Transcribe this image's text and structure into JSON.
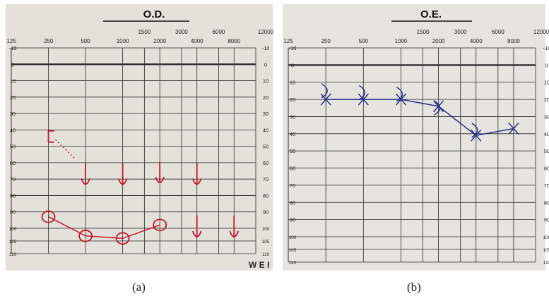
{
  "figure": {
    "caption_a": "(a)",
    "caption_b": "(b)"
  },
  "chart_data": [
    {
      "type": "audiogram",
      "panel_label": "(a)",
      "title": "O.D.",
      "top_freq_labels": [
        "125",
        "250",
        "500",
        "1000",
        "1500",
        "2000",
        "3000",
        "4000",
        "6000",
        "8000",
        "12000"
      ],
      "db_labels": [
        "-10",
        "0",
        "10",
        "20",
        "30",
        "40",
        "50",
        "60",
        "70",
        "80",
        "90",
        "100",
        "105",
        "110"
      ],
      "corner_text": "W E I",
      "ylim": [
        -10,
        110
      ],
      "colors": {
        "paper": "#e3e1da",
        "grid": "#2a2a2a",
        "ink": "#c0182a"
      },
      "series": [
        {
          "symbol": "O",
          "x": [
            250,
            500,
            1000,
            2000
          ],
          "y": [
            93,
            103,
            104,
            98
          ]
        },
        {
          "symbol": "[",
          "x": [
            250
          ],
          "y": [
            44
          ]
        },
        {
          "symbol": "arrow-down",
          "x": [
            500,
            1000,
            2000,
            4000
          ],
          "y": [
            68,
            68,
            67,
            68
          ]
        },
        {
          "symbol": "arrow-down",
          "x": [
            4000,
            8000
          ],
          "y": [
            100,
            100
          ]
        }
      ]
    },
    {
      "type": "audiogram",
      "panel_label": "(b)",
      "title": "O.E.",
      "top_freq_labels": [
        "125",
        "250",
        "500",
        "1000",
        "1500",
        "2000",
        "3000",
        "4000",
        "6000",
        "8000",
        "12000"
      ],
      "db_labels": [
        "-10",
        "0",
        "10",
        "20",
        "30",
        "40",
        "50",
        "60",
        "70",
        "80",
        "90",
        "100",
        "105",
        "110"
      ],
      "ylim": [
        -10,
        110
      ],
      "colors": {
        "paper": "#e5e4df",
        "grid": "#2a2a2a",
        "ink": "#2b2f86"
      },
      "series": [
        {
          "symbol": "X",
          "x": [
            250,
            500,
            1000,
            2000,
            4000,
            8000
          ],
          "y": [
            20,
            20,
            20,
            24,
            41,
            37
          ]
        },
        {
          "symbol": ")",
          "x": [
            250,
            500,
            1000,
            2000,
            4000
          ],
          "y": [
            15,
            16,
            17,
            25,
            38
          ]
        }
      ]
    }
  ]
}
